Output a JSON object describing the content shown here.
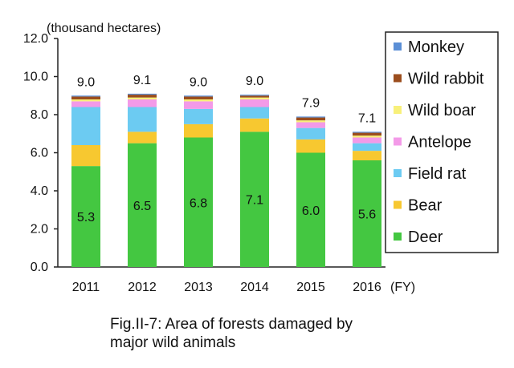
{
  "chart_data": {
    "type": "bar",
    "stacked": true,
    "title": "",
    "ylabel": "(thousand hectares)",
    "xlabel": "(FY)",
    "ylim": [
      0,
      12
    ],
    "yticks": [
      "0.0",
      "2.0",
      "4.0",
      "6.0",
      "8.0",
      "10.0",
      "12.0"
    ],
    "categories": [
      "2011",
      "2012",
      "2013",
      "2014",
      "2015",
      "2016"
    ],
    "totals": [
      "9.0",
      "9.1",
      "9.0",
      "9.0",
      "7.9",
      "7.1"
    ],
    "deer_labels": [
      "5.3",
      "6.5",
      "6.8",
      "7.1",
      "6.0",
      "5.6"
    ],
    "series": [
      {
        "name": "Deer",
        "color": "#44c741",
        "values": [
          5.3,
          6.5,
          6.8,
          7.1,
          6.0,
          5.6
        ]
      },
      {
        "name": "Bear",
        "color": "#f7c830",
        "values": [
          1.1,
          0.6,
          0.7,
          0.7,
          0.7,
          0.5
        ]
      },
      {
        "name": "Field rat",
        "color": "#6ccbf2",
        "values": [
          2.0,
          1.3,
          0.8,
          0.6,
          0.6,
          0.4
        ]
      },
      {
        "name": "Antelope",
        "color": "#f39ae8",
        "values": [
          0.3,
          0.4,
          0.4,
          0.4,
          0.3,
          0.3
        ]
      },
      {
        "name": "Wild boar",
        "color": "#f8f07a",
        "values": [
          0.1,
          0.1,
          0.1,
          0.1,
          0.1,
          0.1
        ]
      },
      {
        "name": "Wild rabbit",
        "color": "#9b4d1d",
        "values": [
          0.15,
          0.15,
          0.15,
          0.1,
          0.15,
          0.15
        ]
      },
      {
        "name": "Monkey",
        "color": "#5b8fd6",
        "values": [
          0.05,
          0.05,
          0.05,
          0.05,
          0.05,
          0.05
        ]
      }
    ],
    "legend_order": [
      "Monkey",
      "Wild rabbit",
      "Wild boar",
      "Antelope",
      "Field rat",
      "Bear",
      "Deer"
    ],
    "legend_position": "right"
  },
  "caption": {
    "line1": "Fig.II-7: Area of forests damaged by",
    "line2": "major wild animals"
  }
}
